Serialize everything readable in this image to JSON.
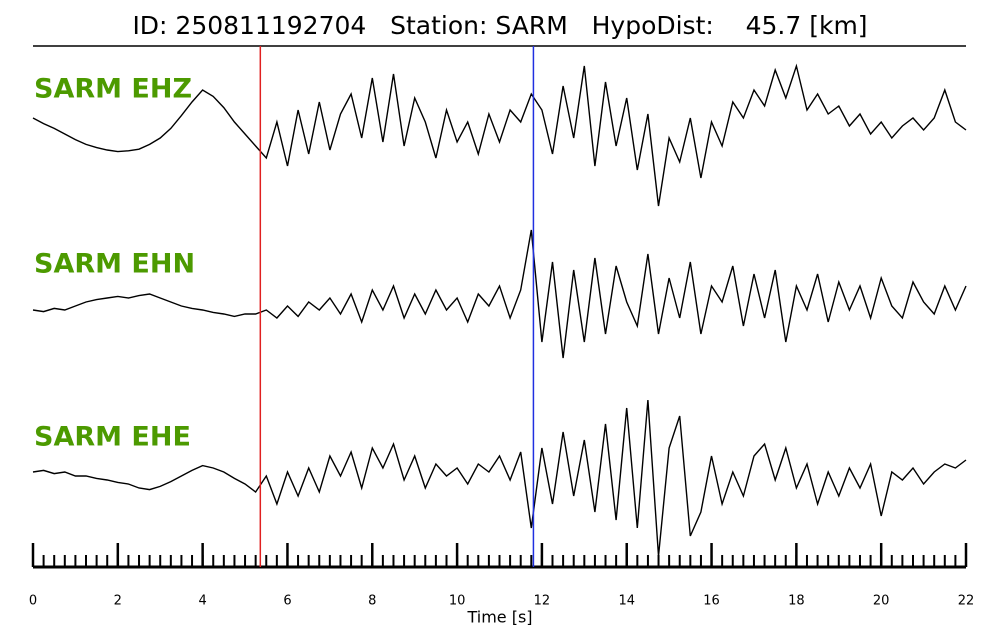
{
  "chart_data": {
    "type": "line",
    "title": "ID: 250811192704   Station: SARM   HypoDist:    45.7 [km]",
    "xlabel": "Time [s]",
    "xlim": [
      0,
      22
    ],
    "xticks": [
      0,
      2,
      4,
      6,
      8,
      10,
      12,
      14,
      16,
      18,
      20,
      22
    ],
    "ylim": [
      -1,
      1
    ],
    "label_color": "#4c9a00",
    "markers": [
      {
        "time": 5.36,
        "color": "#e02020"
      },
      {
        "time": 11.8,
        "color": "#2030e0"
      }
    ],
    "x": [
      0,
      0.25,
      0.5,
      0.75,
      1,
      1.25,
      1.5,
      1.75,
      2,
      2.25,
      2.5,
      2.75,
      3,
      3.25,
      3.5,
      3.75,
      4,
      4.25,
      4.5,
      4.75,
      5,
      5.25,
      5.5,
      5.75,
      6,
      6.25,
      6.5,
      6.75,
      7,
      7.25,
      7.5,
      7.75,
      8,
      8.25,
      8.5,
      8.75,
      9,
      9.25,
      9.5,
      9.75,
      10,
      10.25,
      10.5,
      10.75,
      11,
      11.25,
      11.5,
      11.75,
      12,
      12.25,
      12.5,
      12.75,
      13,
      13.25,
      13.5,
      13.75,
      14,
      14.25,
      14.5,
      14.75,
      15,
      15.25,
      15.5,
      15.75,
      16,
      16.25,
      16.5,
      16.75,
      17,
      17.25,
      17.5,
      17.75,
      18,
      18.25,
      18.5,
      18.75,
      19,
      19.25,
      19.5,
      19.75,
      20,
      20.25,
      20.5,
      20.75,
      21,
      21.25,
      21.5,
      21.75,
      22
    ],
    "series": [
      {
        "name": "SARM EHZ",
        "color": "#000000",
        "values": [
          0.15,
          0.08,
          0.02,
          -0.05,
          -0.12,
          -0.18,
          -0.22,
          -0.25,
          -0.27,
          -0.26,
          -0.24,
          -0.18,
          -0.1,
          0.02,
          0.18,
          0.35,
          0.5,
          0.42,
          0.28,
          0.1,
          -0.05,
          -0.2,
          -0.35,
          0.1,
          -0.45,
          0.25,
          -0.3,
          0.35,
          -0.25,
          0.2,
          0.45,
          -0.1,
          0.65,
          -0.15,
          0.7,
          -0.2,
          0.4,
          0.1,
          -0.35,
          0.25,
          -0.15,
          0.1,
          -0.3,
          0.2,
          -0.15,
          0.25,
          0.1,
          0.45,
          0.25,
          -0.3,
          0.55,
          -0.1,
          0.8,
          -0.45,
          0.6,
          -0.2,
          0.4,
          -0.5,
          0.2,
          -0.95,
          -0.1,
          -0.4,
          0.15,
          -0.6,
          0.1,
          -0.2,
          0.35,
          0.15,
          0.5,
          0.3,
          0.75,
          0.4,
          0.8,
          0.25,
          0.45,
          0.2,
          0.3,
          0.05,
          0.2,
          -0.05,
          0.1,
          -0.1,
          0.05,
          0.15,
          0.0,
          0.15,
          0.5,
          0.1,
          0.0
        ]
      },
      {
        "name": "SARM EHN",
        "color": "#000000",
        "values": [
          0,
          -0.02,
          0.02,
          0,
          0.05,
          0.1,
          0.13,
          0.15,
          0.17,
          0.15,
          0.18,
          0.2,
          0.15,
          0.1,
          0.05,
          0.02,
          0,
          -0.03,
          -0.05,
          -0.08,
          -0.05,
          -0.05,
          0,
          -0.1,
          0.05,
          -0.08,
          0.1,
          0,
          0.15,
          -0.05,
          0.2,
          -0.15,
          0.25,
          0,
          0.3,
          -0.1,
          0.2,
          -0.05,
          0.25,
          0,
          0.15,
          -0.15,
          0.2,
          0.05,
          0.3,
          -0.1,
          0.25,
          1.0,
          -0.4,
          0.6,
          -0.6,
          0.5,
          -0.4,
          0.65,
          -0.3,
          0.55,
          0.1,
          -0.2,
          0.7,
          -0.3,
          0.4,
          -0.1,
          0.6,
          -0.3,
          0.3,
          0.1,
          0.55,
          -0.2,
          0.45,
          -0.1,
          0.5,
          -0.4,
          0.3,
          0.0,
          0.45,
          -0.15,
          0.35,
          0.0,
          0.3,
          -0.1,
          0.4,
          0.05,
          -0.1,
          0.35,
          0.1,
          -0.05,
          0.3,
          0.0,
          0.3
        ]
      },
      {
        "name": "SARM EHE",
        "color": "#000000",
        "values": [
          0.1,
          0.12,
          0.08,
          0.1,
          0.05,
          0.05,
          0.02,
          0,
          -0.03,
          -0.05,
          -0.1,
          -0.12,
          -0.08,
          -0.02,
          0.05,
          0.12,
          0.18,
          0.15,
          0.1,
          0.02,
          -0.05,
          -0.15,
          0.05,
          -0.3,
          0.1,
          -0.2,
          0.15,
          -0.15,
          0.3,
          0.05,
          0.35,
          -0.1,
          0.4,
          0.15,
          0.45,
          0.0,
          0.3,
          -0.1,
          0.2,
          0.05,
          0.15,
          -0.05,
          0.2,
          0.1,
          0.3,
          0.0,
          0.35,
          -0.6,
          0.4,
          -0.3,
          0.6,
          -0.2,
          0.5,
          -0.4,
          0.7,
          -0.5,
          0.9,
          -0.6,
          1.0,
          -0.95,
          0.4,
          0.8,
          -0.7,
          -0.4,
          0.3,
          -0.3,
          0.1,
          -0.2,
          0.3,
          0.45,
          0.0,
          0.4,
          -0.1,
          0.2,
          -0.3,
          0.1,
          -0.2,
          0.15,
          -0.1,
          0.2,
          -0.45,
          0.1,
          0.0,
          0.15,
          -0.05,
          0.1,
          0.2,
          0.15,
          0.25
        ]
      }
    ]
  }
}
